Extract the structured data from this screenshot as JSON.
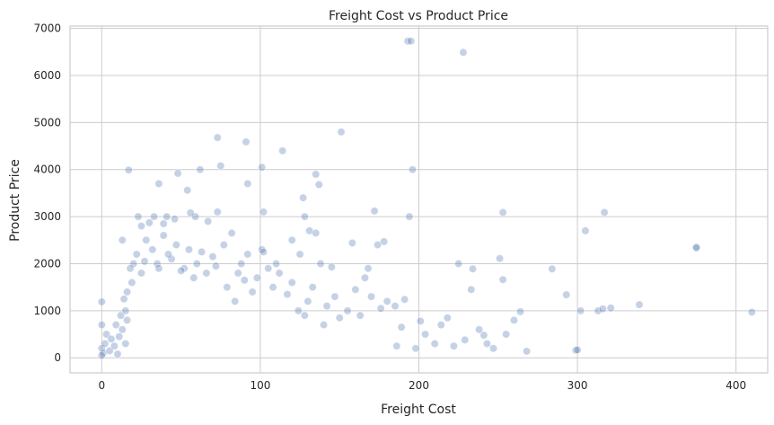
{
  "chart_data": {
    "type": "scatter",
    "title": "Freight Cost vs Product Price",
    "xlabel": "Freight Cost",
    "ylabel": "Product Price",
    "xlim": [
      -20,
      420
    ],
    "ylim": [
      -320,
      7050
    ],
    "xticks": [
      0,
      100,
      200,
      300,
      400
    ],
    "yticks": [
      0,
      1000,
      2000,
      3000,
      4000,
      5000,
      6000,
      7000
    ],
    "grid": true,
    "point_color": "#4c72b0",
    "series": [
      {
        "points": [
          [
            193,
            6730
          ],
          [
            195,
            6730
          ],
          [
            228,
            6490
          ],
          [
            151,
            4800
          ],
          [
            73,
            4680
          ],
          [
            91,
            4590
          ],
          [
            114,
            4400
          ],
          [
            17,
            3990
          ],
          [
            62,
            4000
          ],
          [
            101,
            4050
          ],
          [
            196,
            4000
          ],
          [
            75,
            4080
          ],
          [
            48,
            3920
          ],
          [
            135,
            3900
          ],
          [
            36,
            3700
          ],
          [
            92,
            3700
          ],
          [
            137,
            3680
          ],
          [
            54,
            3560
          ],
          [
            127,
            3400
          ],
          [
            23,
            3000
          ],
          [
            33,
            3000
          ],
          [
            41,
            3000
          ],
          [
            59,
            3000
          ],
          [
            128,
            3000
          ],
          [
            194,
            3000
          ],
          [
            56,
            3080
          ],
          [
            73,
            3100
          ],
          [
            102,
            3100
          ],
          [
            172,
            3120
          ],
          [
            253,
            3090
          ],
          [
            317,
            3090
          ],
          [
            13,
            2500
          ],
          [
            25,
            2800
          ],
          [
            30,
            2870
          ],
          [
            39,
            2850
          ],
          [
            46,
            2950
          ],
          [
            67,
            2900
          ],
          [
            82,
            2650
          ],
          [
            120,
            2500
          ],
          [
            131,
            2700
          ],
          [
            135,
            2650
          ],
          [
            158,
            2440
          ],
          [
            174,
            2400
          ],
          [
            178,
            2470
          ],
          [
            305,
            2700
          ],
          [
            375,
            2330
          ],
          [
            375,
            2350
          ],
          [
            20,
            2000
          ],
          [
            27,
            2050
          ],
          [
            35,
            2000
          ],
          [
            44,
            2100
          ],
          [
            52,
            1900
          ],
          [
            60,
            2000
          ],
          [
            72,
            1950
          ],
          [
            88,
            2000
          ],
          [
            101,
            2300
          ],
          [
            102,
            2250
          ],
          [
            110,
            2000
          ],
          [
            125,
            2200
          ],
          [
            138,
            2000
          ],
          [
            145,
            1930
          ],
          [
            168,
            1900
          ],
          [
            225,
            2000
          ],
          [
            234,
            1890
          ],
          [
            251,
            2110
          ],
          [
            284,
            1890
          ],
          [
            233,
            1450
          ],
          [
            253,
            1660
          ],
          [
            264,
            980
          ],
          [
            293,
            1340
          ],
          [
            302,
            1000
          ],
          [
            313,
            1000
          ],
          [
            316,
            1040
          ],
          [
            321,
            1060
          ],
          [
            339,
            1130
          ],
          [
            410,
            970
          ],
          [
            299,
            160
          ],
          [
            300,
            170
          ],
          [
            238,
            600
          ],
          [
            243,
            300
          ],
          [
            247,
            200
          ],
          [
            255,
            500
          ],
          [
            260,
            800
          ],
          [
            268,
            140
          ],
          [
            241,
            480
          ],
          [
            229,
            380
          ],
          [
            204,
            500
          ],
          [
            210,
            300
          ],
          [
            214,
            700
          ],
          [
            218,
            850
          ],
          [
            222,
            250
          ],
          [
            198,
            200
          ],
          [
            201,
            780
          ],
          [
            186,
            250
          ],
          [
            189,
            650
          ],
          [
            180,
            1200
          ],
          [
            185,
            1100
          ],
          [
            191,
            1240
          ],
          [
            176,
            1050
          ],
          [
            170,
            1300
          ],
          [
            163,
            900
          ],
          [
            166,
            1700
          ],
          [
            160,
            1450
          ],
          [
            155,
            1000
          ],
          [
            150,
            850
          ],
          [
            147,
            1300
          ],
          [
            142,
            1100
          ],
          [
            140,
            700
          ],
          [
            133,
            1500
          ],
          [
            130,
            1200
          ],
          [
            128,
            900
          ],
          [
            124,
            1000
          ],
          [
            120,
            1600
          ],
          [
            117,
            1350
          ],
          [
            112,
            1800
          ],
          [
            108,
            1500
          ],
          [
            105,
            1900
          ],
          [
            98,
            1700
          ],
          [
            95,
            1400
          ],
          [
            92,
            2200
          ],
          [
            90,
            1650
          ],
          [
            86,
            1800
          ],
          [
            84,
            1200
          ],
          [
            79,
            1500
          ],
          [
            77,
            2400
          ],
          [
            70,
            2150
          ],
          [
            66,
            1800
          ],
          [
            63,
            2250
          ],
          [
            58,
            1700
          ],
          [
            55,
            2300
          ],
          [
            50,
            1850
          ],
          [
            47,
            2400
          ],
          [
            42,
            2200
          ],
          [
            39,
            2600
          ],
          [
            36,
            1900
          ],
          [
            32,
            2300
          ],
          [
            28,
            2500
          ],
          [
            25,
            1800
          ],
          [
            22,
            2200
          ],
          [
            19,
            1600
          ],
          [
            16,
            1400
          ],
          [
            14,
            1250
          ],
          [
            18,
            1900
          ],
          [
            0,
            1190
          ],
          [
            0,
            700
          ],
          [
            0,
            200
          ],
          [
            1,
            100
          ],
          [
            0,
            50
          ],
          [
            2,
            300
          ],
          [
            3,
            500
          ],
          [
            5,
            150
          ],
          [
            6,
            400
          ],
          [
            8,
            250
          ],
          [
            9,
            700
          ],
          [
            10,
            80
          ],
          [
            11,
            450
          ],
          [
            12,
            900
          ],
          [
            13,
            600
          ],
          [
            15,
            300
          ],
          [
            15,
            1000
          ],
          [
            16,
            800
          ]
        ]
      }
    ]
  }
}
